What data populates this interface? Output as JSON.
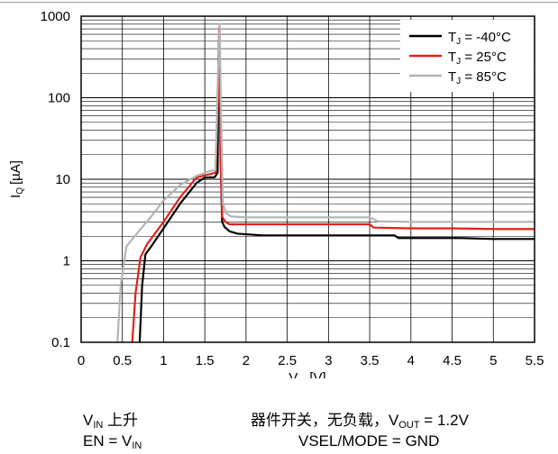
{
  "chart_data": {
    "type": "line",
    "xlabel": "V",
    "xlabel_sub": "IN",
    "xlabel_unit": "[V]",
    "ylabel": "I",
    "ylabel_sub": "Q",
    "ylabel_unit": "[µA]",
    "xlim": [
      0,
      5.5
    ],
    "ylim": [
      0.1,
      1000
    ],
    "yscale": "log",
    "grid": true,
    "legend_position": "top-right",
    "x_ticks": [
      0,
      0.5,
      1,
      1.5,
      2,
      2.5,
      3,
      3.5,
      4,
      4.5,
      5,
      5.5
    ],
    "x_tick_labels": [
      "0",
      "0.5",
      "1",
      "1.5",
      "2",
      "2.5",
      "3",
      "3.5",
      "4",
      "4.5",
      "5",
      "5.5"
    ],
    "y_ticks": [
      0.1,
      1,
      10,
      100,
      1000
    ],
    "y_tick_labels": [
      "0.1",
      "1",
      "10",
      "100",
      "1000"
    ],
    "series": [
      {
        "name": "T",
        "name_sub": "J",
        "name_rest": " = -40°C",
        "color": "#000000",
        "x": [
          0.71,
          0.74,
          0.78,
          0.85,
          1.0,
          1.2,
          1.4,
          1.5,
          1.62,
          1.655,
          1.665,
          1.675,
          1.69,
          1.71,
          1.74,
          1.8,
          1.9,
          2.2,
          2.6,
          3.0,
          3.4,
          3.8,
          3.85,
          4.2,
          4.6,
          5.0,
          5.5
        ],
        "y": [
          0.1,
          0.5,
          1.2,
          1.5,
          2.5,
          5,
          9,
          10.5,
          10.6,
          12,
          300,
          650,
          20,
          3,
          2.6,
          2.3,
          2.15,
          2.05,
          2.05,
          2.05,
          2.05,
          2.05,
          1.9,
          1.9,
          1.9,
          1.85,
          1.85
        ]
      },
      {
        "name": "T",
        "name_sub": "J",
        "name_rest": " = 25°C",
        "color": "#e32119",
        "x": [
          0.62,
          0.66,
          0.72,
          0.8,
          1.0,
          1.2,
          1.4,
          1.55,
          1.63,
          1.66,
          1.675,
          1.69,
          1.71,
          1.75,
          1.8,
          2.0,
          2.5,
          3.0,
          3.5,
          3.55,
          4.0,
          4.5,
          5.0,
          5.5
        ],
        "y": [
          0.1,
          0.4,
          1.1,
          1.6,
          3,
          6,
          10.5,
          11.5,
          12,
          100,
          720,
          20,
          3.5,
          3.0,
          2.8,
          2.8,
          2.8,
          2.8,
          2.8,
          2.55,
          2.5,
          2.5,
          2.45,
          2.45
        ]
      },
      {
        "name": "T",
        "name_sub": "J",
        "name_rest": " = 85°C",
        "color": "#b4b4b4",
        "x": [
          0.44,
          0.48,
          0.55,
          0.65,
          0.85,
          1.0,
          1.2,
          1.4,
          1.55,
          1.63,
          1.66,
          1.68,
          1.7,
          1.72,
          1.76,
          1.82,
          2.0,
          2.5,
          3.0,
          3.5,
          3.6,
          4.0,
          4.5,
          5.0,
          5.5
        ],
        "y": [
          0.1,
          0.5,
          1.5,
          2.0,
          3.5,
          5.5,
          8.5,
          11,
          12.5,
          13,
          200,
          790,
          40,
          5,
          3.8,
          3.5,
          3.4,
          3.4,
          3.4,
          3.4,
          3.05,
          3.0,
          3.0,
          3.0,
          3.0
        ]
      }
    ]
  },
  "captions": {
    "left_1_v": "V",
    "left_1_sub": "IN",
    "left_1_rest": " 上升",
    "right_1_pre": "器件开关，无负载，V",
    "right_1_sub": "OUT",
    "right_1_rest": " = 1.2V",
    "left_2_pre": "EN = V",
    "left_2_sub": "IN",
    "right_2": "VSEL/MODE = GND"
  }
}
